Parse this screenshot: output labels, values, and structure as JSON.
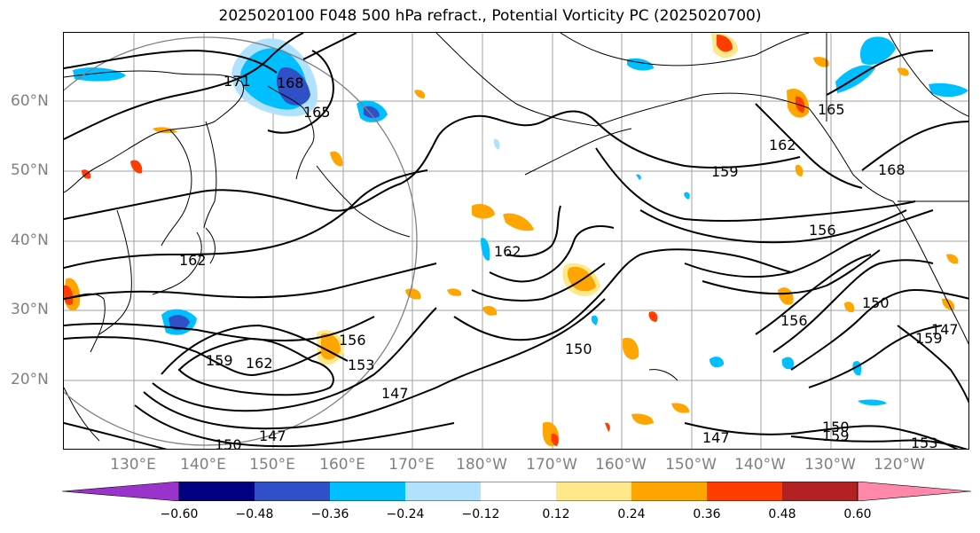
{
  "title": "2025020100 F048 500 hPa refract., Potential Vorticity PC (2025020700)",
  "lat_labels": [
    "60°N",
    "50°N",
    "40°N",
    "30°N",
    "20°N"
  ],
  "lon_labels": [
    "130°E",
    "140°E",
    "150°E",
    "160°E",
    "170°E",
    "180°W",
    "170°W",
    "160°W",
    "150°W",
    "140°W",
    "130°W",
    "120°W"
  ],
  "contour_labels": [
    "171",
    "168",
    "165",
    "162",
    "159",
    "162",
    "159",
    "156",
    "156",
    "162",
    "153",
    "147",
    "150",
    "147",
    "150",
    "159",
    "147",
    "162",
    "156",
    "150",
    "165",
    "168",
    "150",
    "159",
    "153",
    "147"
  ],
  "colorbar": {
    "ticks": [
      "−0.60",
      "−0.48",
      "−0.36",
      "−0.24",
      "−0.12",
      "0.12",
      "0.24",
      "0.36",
      "0.48",
      "0.60"
    ],
    "colors": [
      "#9933cc",
      "#000080",
      "#3050c8",
      "#00bfff",
      "#b0e2ff",
      "#ffffff",
      "#ffe88a",
      "#ffa500",
      "#ff3d00",
      "#b22222",
      "#ff88aa"
    ]
  }
}
